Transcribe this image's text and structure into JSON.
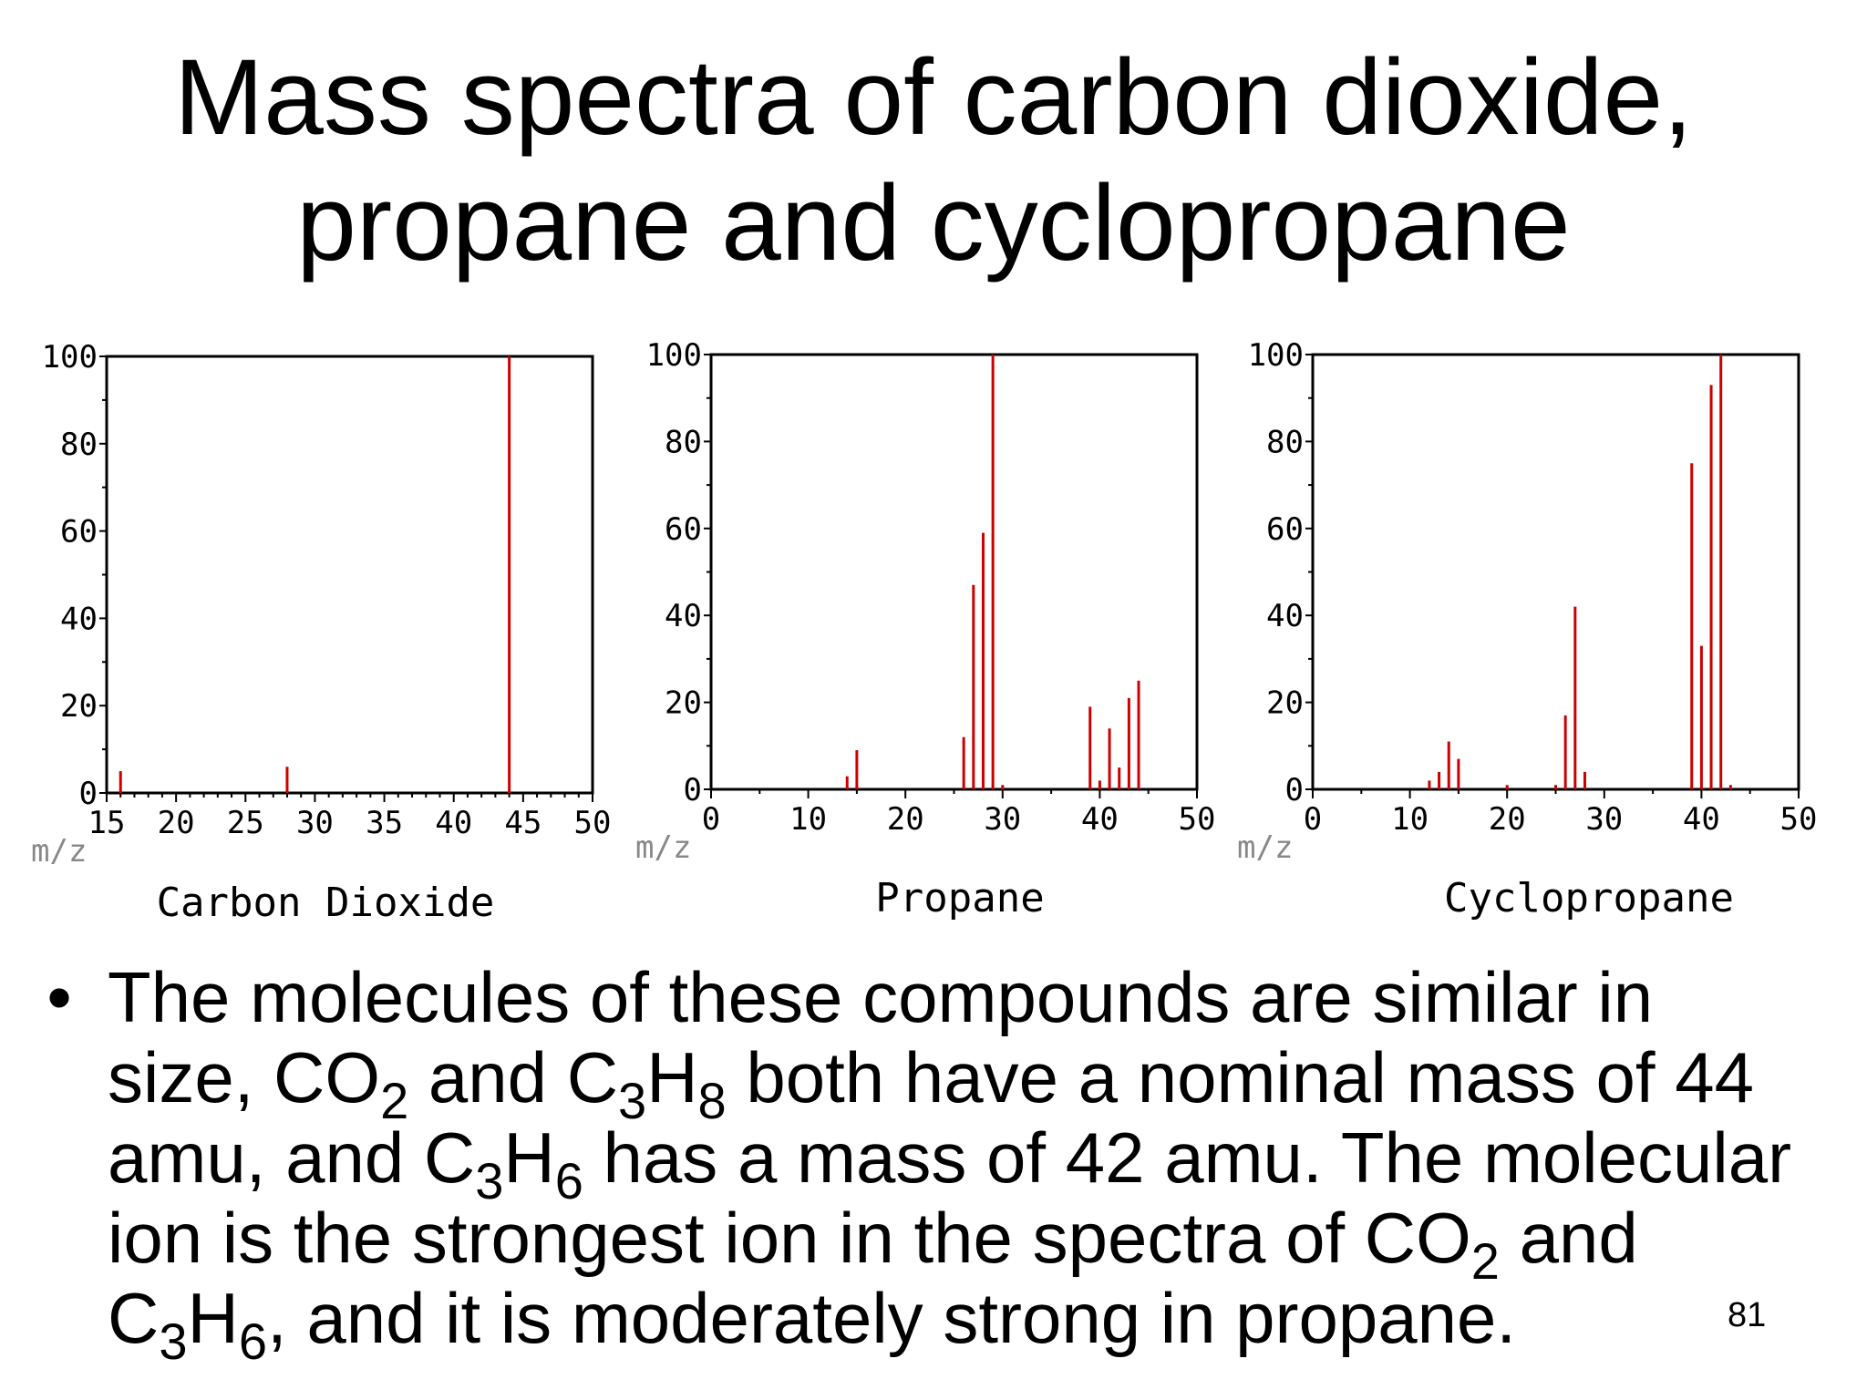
{
  "title": {
    "line1": "Mass spectra of carbon dioxide,",
    "line2": "propane and cyclopropane"
  },
  "chart_data": [
    {
      "type": "bar",
      "name": "Carbon Dioxide",
      "xlabel": "m/z",
      "xlim": [
        15,
        50
      ],
      "xticks": [
        "15",
        "20",
        "25",
        "30",
        "35",
        "40",
        "45",
        "50"
      ],
      "ylim": [
        0,
        100
      ],
      "yticks": [
        "0",
        "20",
        "40",
        "60",
        "80",
        "100"
      ],
      "peaks": [
        {
          "x": 16,
          "y": 5
        },
        {
          "x": 28,
          "y": 6
        },
        {
          "x": 44,
          "y": 100
        }
      ]
    },
    {
      "type": "bar",
      "name": "Propane",
      "xlabel": "m/z",
      "xlim": [
        0,
        50
      ],
      "xticks": [
        "0",
        "10",
        "20",
        "30",
        "40",
        "50"
      ],
      "ylim": [
        0,
        100
      ],
      "yticks": [
        "0",
        "20",
        "40",
        "60",
        "80",
        "100"
      ],
      "peaks": [
        {
          "x": 14,
          "y": 3
        },
        {
          "x": 15,
          "y": 9
        },
        {
          "x": 26,
          "y": 12
        },
        {
          "x": 27,
          "y": 47
        },
        {
          "x": 28,
          "y": 59
        },
        {
          "x": 29,
          "y": 100
        },
        {
          "x": 30,
          "y": 1
        },
        {
          "x": 39,
          "y": 19
        },
        {
          "x": 40,
          "y": 2
        },
        {
          "x": 41,
          "y": 14
        },
        {
          "x": 42,
          "y": 5
        },
        {
          "x": 43,
          "y": 21
        },
        {
          "x": 44,
          "y": 25
        }
      ]
    },
    {
      "type": "bar",
      "name": "Cyclopropane",
      "xlabel": "m/z",
      "xlim": [
        0,
        50
      ],
      "xticks": [
        "0",
        "10",
        "20",
        "30",
        "40",
        "50"
      ],
      "ylim": [
        0,
        100
      ],
      "yticks": [
        "0",
        "20",
        "40",
        "60",
        "80",
        "100"
      ],
      "peaks": [
        {
          "x": 12,
          "y": 2
        },
        {
          "x": 13,
          "y": 4
        },
        {
          "x": 14,
          "y": 11
        },
        {
          "x": 15,
          "y": 7
        },
        {
          "x": 20,
          "y": 1
        },
        {
          "x": 25,
          "y": 1
        },
        {
          "x": 26,
          "y": 17
        },
        {
          "x": 27,
          "y": 42
        },
        {
          "x": 28,
          "y": 4
        },
        {
          "x": 39,
          "y": 75
        },
        {
          "x": 40,
          "y": 33
        },
        {
          "x": 41,
          "y": 93
        },
        {
          "x": 42,
          "y": 100
        },
        {
          "x": 43,
          "y": 1
        }
      ]
    }
  ],
  "bullet": {
    "symbol": "•",
    "line1": "The molecules of these compounds are similar in",
    "line2": [
      "size, CO",
      "2",
      " and C",
      "3",
      "H",
      "8",
      " both have a nominal mass of 44"
    ],
    "line3": [
      "amu, and C",
      "3",
      "H",
      "6",
      " has a mass of 42 amu. The molecular"
    ],
    "line4": [
      "ion is the strongest ion in the spectra of CO",
      "2",
      " and"
    ],
    "line5": [
      "C",
      "3",
      "H",
      "6",
      ", and it is moderately strong in propane."
    ]
  },
  "page_number": "81",
  "colors": {
    "peak": "#cc0000",
    "axis": "#000000",
    "mz_label": "#888888"
  }
}
